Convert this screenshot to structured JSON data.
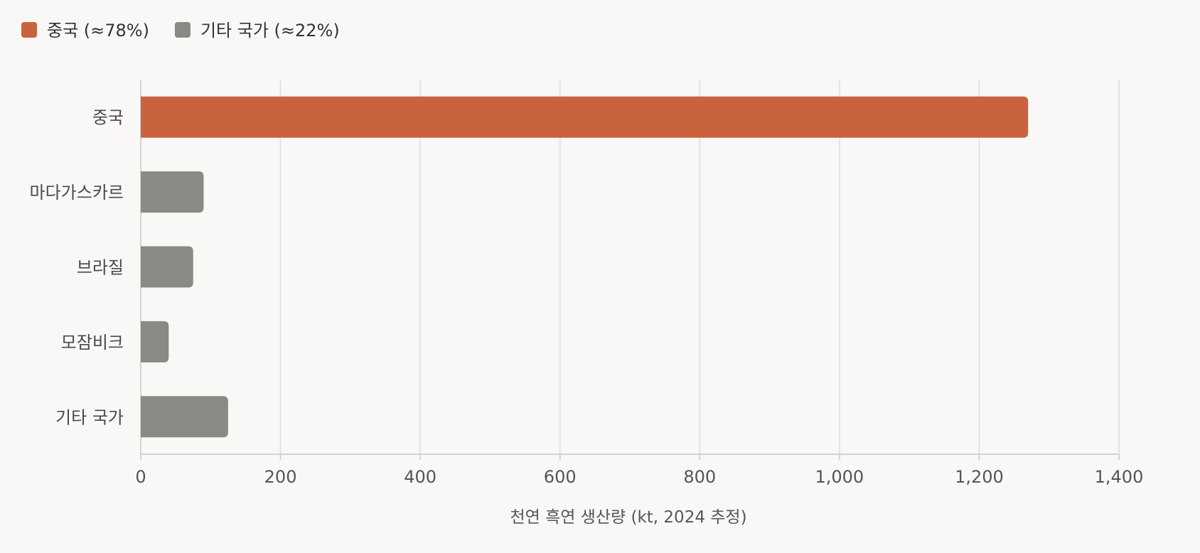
{
  "chart_data": {
    "type": "bar",
    "orientation": "horizontal",
    "categories": [
      "중국",
      "마다가스카르",
      "브라질",
      "모잠비크",
      "기타 국가"
    ],
    "values": [
      1270,
      90,
      75,
      40,
      125
    ],
    "bar_colors": [
      "#c9633e",
      "#8a8983",
      "#8a8983",
      "#8a8983",
      "#8a8983"
    ],
    "legend": [
      {
        "label": "중국 (≈78%)",
        "color": "#c9633e"
      },
      {
        "label": "기타 국가 (≈22%)",
        "color": "#8a8983"
      }
    ],
    "xlabel": "천연 흑연 생산량 (kt, 2024 추정)",
    "ylabel": "",
    "xlim": [
      0,
      1400
    ],
    "ticks": [
      0,
      200,
      400,
      600,
      800,
      1000,
      1200,
      1400
    ],
    "tick_labels": [
      "0",
      "200",
      "400",
      "600",
      "800",
      "1,000",
      "1,200",
      "1,400"
    ],
    "grid": true,
    "legend_position": "top-left",
    "background": "#f9f8f6"
  }
}
